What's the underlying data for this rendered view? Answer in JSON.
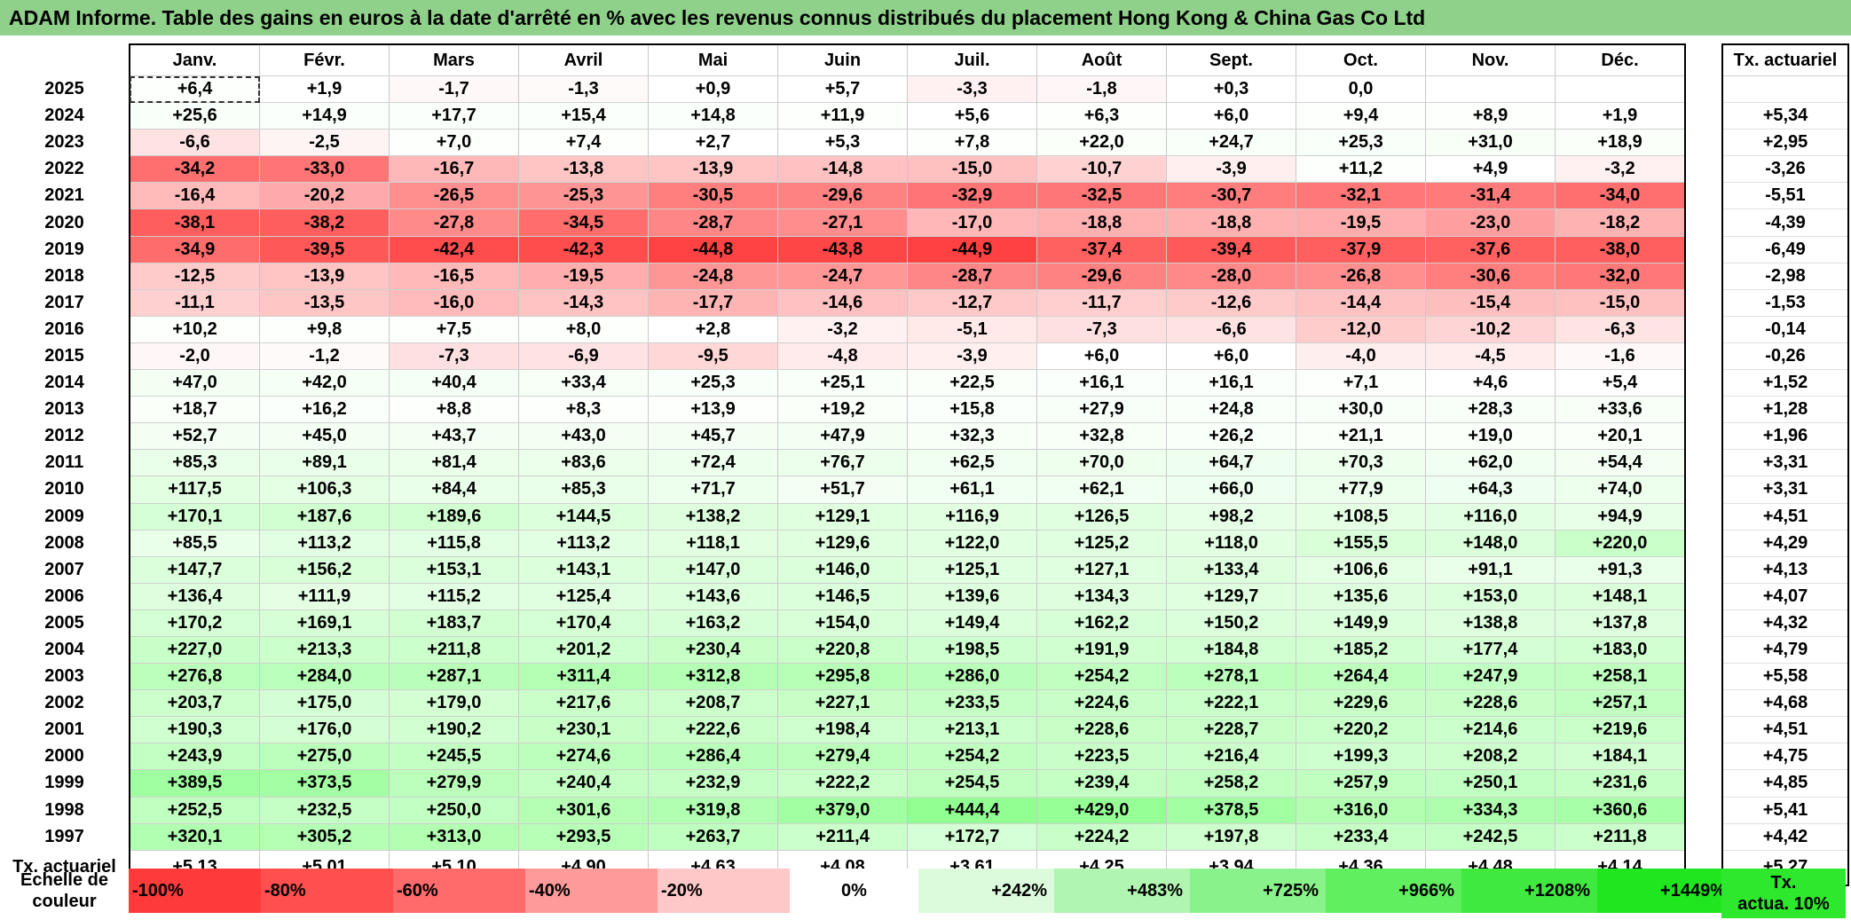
{
  "title": "ADAM Informe. Table des gains en euros à la date d'arrêté en % avec les revenus connus distribués du placement Hong Kong & China Gas Co Ltd",
  "months": [
    "Janv.",
    "Févr.",
    "Mars",
    "Avril",
    "Mai",
    "Juin",
    "Juil.",
    "Août",
    "Sept.",
    "Oct.",
    "Nov.",
    "Déc."
  ],
  "rate_header": "Tx. actuariel",
  "rows": [
    {
      "year": "2025",
      "values": [
        "+6,4",
        "+1,9",
        "-1,7",
        "-1,3",
        "+0,9",
        "+5,7",
        "-3,3",
        "-1,8",
        "+0,3",
        "0,0",
        "",
        ""
      ],
      "rate": ""
    },
    {
      "year": "2024",
      "values": [
        "+25,6",
        "+14,9",
        "+17,7",
        "+15,4",
        "+14,8",
        "+11,9",
        "+5,6",
        "+6,3",
        "+6,0",
        "+9,4",
        "+8,9",
        "+1,9"
      ],
      "rate": "+5,34"
    },
    {
      "year": "2023",
      "values": [
        "-6,6",
        "-2,5",
        "+7,0",
        "+7,4",
        "+2,7",
        "+5,3",
        "+7,8",
        "+22,0",
        "+24,7",
        "+25,3",
        "+31,0",
        "+18,9"
      ],
      "rate": "+2,95"
    },
    {
      "year": "2022",
      "values": [
        "-34,2",
        "-33,0",
        "-16,7",
        "-13,8",
        "-13,9",
        "-14,8",
        "-15,0",
        "-10,7",
        "-3,9",
        "+11,2",
        "+4,9",
        "-3,2"
      ],
      "rate": "-3,26"
    },
    {
      "year": "2021",
      "values": [
        "-16,4",
        "-20,2",
        "-26,5",
        "-25,3",
        "-30,5",
        "-29,6",
        "-32,9",
        "-32,5",
        "-30,7",
        "-32,1",
        "-31,4",
        "-34,0"
      ],
      "rate": "-5,51"
    },
    {
      "year": "2020",
      "values": [
        "-38,1",
        "-38,2",
        "-27,8",
        "-34,5",
        "-28,7",
        "-27,1",
        "-17,0",
        "-18,8",
        "-18,8",
        "-19,5",
        "-23,0",
        "-18,2"
      ],
      "rate": "-4,39"
    },
    {
      "year": "2019",
      "values": [
        "-34,9",
        "-39,5",
        "-42,4",
        "-42,3",
        "-44,8",
        "-43,8",
        "-44,9",
        "-37,4",
        "-39,4",
        "-37,9",
        "-37,6",
        "-38,0"
      ],
      "rate": "-6,49"
    },
    {
      "year": "2018",
      "values": [
        "-12,5",
        "-13,9",
        "-16,5",
        "-19,5",
        "-24,8",
        "-24,7",
        "-28,7",
        "-29,6",
        "-28,0",
        "-26,8",
        "-30,6",
        "-32,0"
      ],
      "rate": "-2,98"
    },
    {
      "year": "2017",
      "values": [
        "-11,1",
        "-13,5",
        "-16,0",
        "-14,3",
        "-17,7",
        "-14,6",
        "-12,7",
        "-11,7",
        "-12,6",
        "-14,4",
        "-15,4",
        "-15,0"
      ],
      "rate": "-1,53"
    },
    {
      "year": "2016",
      "values": [
        "+10,2",
        "+9,8",
        "+7,5",
        "+8,0",
        "+2,8",
        "-3,2",
        "-5,1",
        "-7,3",
        "-6,6",
        "-12,0",
        "-10,2",
        "-6,3"
      ],
      "rate": "-0,14"
    },
    {
      "year": "2015",
      "values": [
        "-2,0",
        "-1,2",
        "-7,3",
        "-6,9",
        "-9,5",
        "-4,8",
        "-3,9",
        "+6,0",
        "+6,0",
        "-4,0",
        "-4,5",
        "-1,6"
      ],
      "rate": "-0,26"
    },
    {
      "year": "2014",
      "values": [
        "+47,0",
        "+42,0",
        "+40,4",
        "+33,4",
        "+25,3",
        "+25,1",
        "+22,5",
        "+16,1",
        "+16,1",
        "+7,1",
        "+4,6",
        "+5,4"
      ],
      "rate": "+1,52"
    },
    {
      "year": "2013",
      "values": [
        "+18,7",
        "+16,2",
        "+8,8",
        "+8,3",
        "+13,9",
        "+19,2",
        "+15,8",
        "+27,9",
        "+24,8",
        "+30,0",
        "+28,3",
        "+33,6"
      ],
      "rate": "+1,28"
    },
    {
      "year": "2012",
      "values": [
        "+52,7",
        "+45,0",
        "+43,7",
        "+43,0",
        "+45,7",
        "+47,9",
        "+32,3",
        "+32,8",
        "+26,2",
        "+21,1",
        "+19,0",
        "+20,1"
      ],
      "rate": "+1,96"
    },
    {
      "year": "2011",
      "values": [
        "+85,3",
        "+89,1",
        "+81,4",
        "+83,6",
        "+72,4",
        "+76,7",
        "+62,5",
        "+70,0",
        "+64,7",
        "+70,3",
        "+62,0",
        "+54,4"
      ],
      "rate": "+3,31"
    },
    {
      "year": "2010",
      "values": [
        "+117,5",
        "+106,3",
        "+84,4",
        "+85,3",
        "+71,7",
        "+51,7",
        "+61,1",
        "+62,1",
        "+66,0",
        "+77,9",
        "+64,3",
        "+74,0"
      ],
      "rate": "+3,31"
    },
    {
      "year": "2009",
      "values": [
        "+170,1",
        "+187,6",
        "+189,6",
        "+144,5",
        "+138,2",
        "+129,1",
        "+116,9",
        "+126,5",
        "+98,2",
        "+108,5",
        "+116,0",
        "+94,9"
      ],
      "rate": "+4,51"
    },
    {
      "year": "2008",
      "values": [
        "+85,5",
        "+113,2",
        "+115,8",
        "+113,2",
        "+118,1",
        "+129,6",
        "+122,0",
        "+125,2",
        "+118,0",
        "+155,5",
        "+148,0",
        "+220,0"
      ],
      "rate": "+4,29"
    },
    {
      "year": "2007",
      "values": [
        "+147,7",
        "+156,2",
        "+153,1",
        "+143,1",
        "+147,0",
        "+146,0",
        "+125,1",
        "+127,1",
        "+133,4",
        "+106,6",
        "+91,1",
        "+91,3"
      ],
      "rate": "+4,13"
    },
    {
      "year": "2006",
      "values": [
        "+136,4",
        "+111,9",
        "+115,2",
        "+125,4",
        "+143,6",
        "+146,5",
        "+139,6",
        "+134,3",
        "+129,7",
        "+135,6",
        "+153,0",
        "+148,1"
      ],
      "rate": "+4,07"
    },
    {
      "year": "2005",
      "values": [
        "+170,2",
        "+169,1",
        "+183,7",
        "+170,4",
        "+163,2",
        "+154,0",
        "+149,4",
        "+162,2",
        "+150,2",
        "+149,9",
        "+138,8",
        "+137,8"
      ],
      "rate": "+4,32"
    },
    {
      "year": "2004",
      "values": [
        "+227,0",
        "+213,3",
        "+211,8",
        "+201,2",
        "+230,4",
        "+220,8",
        "+198,5",
        "+191,9",
        "+184,8",
        "+185,2",
        "+177,4",
        "+183,0"
      ],
      "rate": "+4,79"
    },
    {
      "year": "2003",
      "values": [
        "+276,8",
        "+284,0",
        "+287,1",
        "+311,4",
        "+312,8",
        "+295,8",
        "+286,0",
        "+254,2",
        "+278,1",
        "+264,4",
        "+247,9",
        "+258,1"
      ],
      "rate": "+5,58"
    },
    {
      "year": "2002",
      "values": [
        "+203,7",
        "+175,0",
        "+179,0",
        "+217,6",
        "+208,7",
        "+227,1",
        "+233,5",
        "+224,6",
        "+222,1",
        "+229,6",
        "+228,6",
        "+257,1"
      ],
      "rate": "+4,68"
    },
    {
      "year": "2001",
      "values": [
        "+190,3",
        "+176,0",
        "+190,2",
        "+230,1",
        "+222,6",
        "+198,4",
        "+213,1",
        "+228,6",
        "+228,7",
        "+220,2",
        "+214,6",
        "+219,6"
      ],
      "rate": "+4,51"
    },
    {
      "year": "2000",
      "values": [
        "+243,9",
        "+275,0",
        "+245,5",
        "+274,6",
        "+286,4",
        "+279,4",
        "+254,2",
        "+223,5",
        "+216,4",
        "+199,3",
        "+208,2",
        "+184,1"
      ],
      "rate": "+4,75"
    },
    {
      "year": "1999",
      "values": [
        "+389,5",
        "+373,5",
        "+279,9",
        "+240,4",
        "+232,9",
        "+222,2",
        "+254,5",
        "+239,4",
        "+258,2",
        "+257,9",
        "+250,1",
        "+231,6"
      ],
      "rate": "+4,85"
    },
    {
      "year": "1998",
      "values": [
        "+252,5",
        "+232,5",
        "+250,0",
        "+301,6",
        "+319,8",
        "+379,0",
        "+444,4",
        "+429,0",
        "+378,5",
        "+316,0",
        "+334,3",
        "+360,6"
      ],
      "rate": "+5,41"
    },
    {
      "year": "1997",
      "values": [
        "+320,1",
        "+305,2",
        "+313,0",
        "+293,5",
        "+263,7",
        "+211,4",
        "+172,7",
        "+224,2",
        "+197,8",
        "+233,4",
        "+242,5",
        "+211,8"
      ],
      "rate": "+4,42"
    }
  ],
  "footer": {
    "label": "Tx. actuariel",
    "values": [
      "+5,13",
      "+5,01",
      "+5,10",
      "+4,90",
      "+4,63",
      "+4,08",
      "+3,61",
      "+4,25",
      "+3,94",
      "+4,36",
      "+4,48",
      "+4,14"
    ],
    "rate": "+5,27"
  },
  "scale": {
    "label_line1": "Echelle de",
    "label_line2": "couleur",
    "items": [
      {
        "text": "-100%",
        "color": "#ff3a3a",
        "align": "left"
      },
      {
        "text": "-80%",
        "color": "#ff4f4f",
        "align": "left"
      },
      {
        "text": "-60%",
        "color": "#ff6a6a",
        "align": "left"
      },
      {
        "text": "-40%",
        "color": "#ff9a9a",
        "align": "left"
      },
      {
        "text": "-20%",
        "color": "#ffc8c8",
        "align": "left"
      },
      {
        "text": "0%",
        "color": "#ffffff",
        "align": "center"
      },
      {
        "text": "+242%",
        "color": "#dcfbdc",
        "align": "right"
      },
      {
        "text": "+483%",
        "color": "#b0f5b0",
        "align": "right"
      },
      {
        "text": "+725%",
        "color": "#8af28a",
        "align": "right"
      },
      {
        "text": "+966%",
        "color": "#5fef5f",
        "align": "right"
      },
      {
        "text": "+1208%",
        "color": "#3fe93f",
        "align": "right"
      },
      {
        "text": "+1449%",
        "color": "#1fe61f",
        "align": "right"
      }
    ],
    "end_line1": "Tx.",
    "end_line2": "actua. 10%",
    "end_color": "#2de82d"
  },
  "colors": {
    "title_bg": "#8fd18a",
    "negative_max": "#ff3a3a",
    "positive_max": "#1fe61f"
  }
}
